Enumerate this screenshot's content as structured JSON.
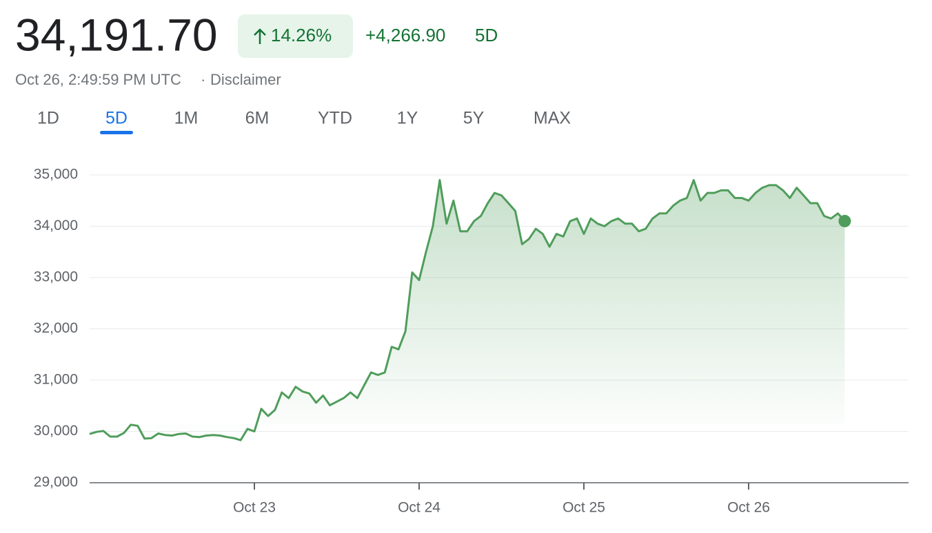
{
  "header": {
    "price": "34,191.70",
    "change_percent": "14.26%",
    "change": "+4,266.90",
    "period": "5D",
    "timestamp": "Oct 26, 2:49:59 PM UTC",
    "separator": "·",
    "disclaimer": "Disclaimer"
  },
  "tabs": {
    "items": [
      "1D",
      "5D",
      "1M",
      "6M",
      "YTD",
      "1Y",
      "5Y",
      "MAX"
    ],
    "selected": 1
  },
  "chart_data": {
    "type": "line",
    "color": "#4f9d5b",
    "categories": [
      null,
      null,
      null,
      null,
      null,
      null,
      null,
      null,
      null,
      null,
      null,
      null,
      null,
      null,
      null,
      null,
      null,
      null,
      null,
      null,
      null,
      null,
      null,
      null,
      "Oct 23",
      null,
      null,
      null,
      null,
      null,
      null,
      null,
      null,
      null,
      null,
      null,
      null,
      null,
      null,
      null,
      null,
      null,
      null,
      null,
      null,
      null,
      null,
      null,
      "Oct 24",
      null,
      null,
      null,
      null,
      null,
      null,
      null,
      null,
      null,
      null,
      null,
      null,
      null,
      null,
      null,
      null,
      null,
      null,
      null,
      null,
      null,
      null,
      null,
      "Oct 25",
      null,
      null,
      null,
      null,
      null,
      null,
      null,
      null,
      null,
      null,
      null,
      null,
      null,
      null,
      null,
      null,
      null,
      null,
      null,
      null,
      null,
      null,
      null,
      "Oct 26",
      null,
      null,
      null,
      null,
      null,
      null,
      null,
      null,
      null,
      null,
      null,
      null,
      null,
      null
    ],
    "values": [
      29950,
      29990,
      30010,
      29900,
      29900,
      29970,
      30130,
      30110,
      29860,
      29870,
      29960,
      29930,
      29920,
      29950,
      29960,
      29900,
      29890,
      29920,
      29930,
      29920,
      29890,
      29870,
      29830,
      30050,
      30000,
      30440,
      30300,
      30420,
      30760,
      30650,
      30870,
      30780,
      30740,
      30560,
      30700,
      30510,
      30580,
      30650,
      30760,
      30650,
      30900,
      31150,
      31100,
      31150,
      31650,
      31600,
      31950,
      33100,
      32950,
      33500,
      34000,
      34900,
      34050,
      34500,
      33900,
      33900,
      34100,
      34200,
      34450,
      34650,
      34600,
      34450,
      34300,
      33650,
      33750,
      33950,
      33850,
      33600,
      33850,
      33800,
      34100,
      34150,
      33850,
      34150,
      34050,
      34000,
      34100,
      34150,
      34050,
      34050,
      33900,
      33950,
      34150,
      34250,
      34250,
      34400,
      34500,
      34550,
      34900,
      34500,
      34650,
      34650,
      34700,
      34700,
      34550,
      34550,
      34500,
      34650,
      34750,
      34800,
      34800,
      34700,
      34550,
      34750,
      34600,
      34450,
      34450,
      34200,
      34150,
      34250,
      34100
    ],
    "ylim": [
      29000,
      35000
    ],
    "yticks": [
      {
        "value": 29000,
        "label": "29,000"
      },
      {
        "value": 30000,
        "label": "30,000"
      },
      {
        "value": 31000,
        "label": "31,000"
      },
      {
        "value": 32000,
        "label": "32,000"
      },
      {
        "value": 33000,
        "label": "33,000"
      },
      {
        "value": 34000,
        "label": "34,000"
      },
      {
        "value": 35000,
        "label": "35,000"
      }
    ],
    "grid": true
  }
}
